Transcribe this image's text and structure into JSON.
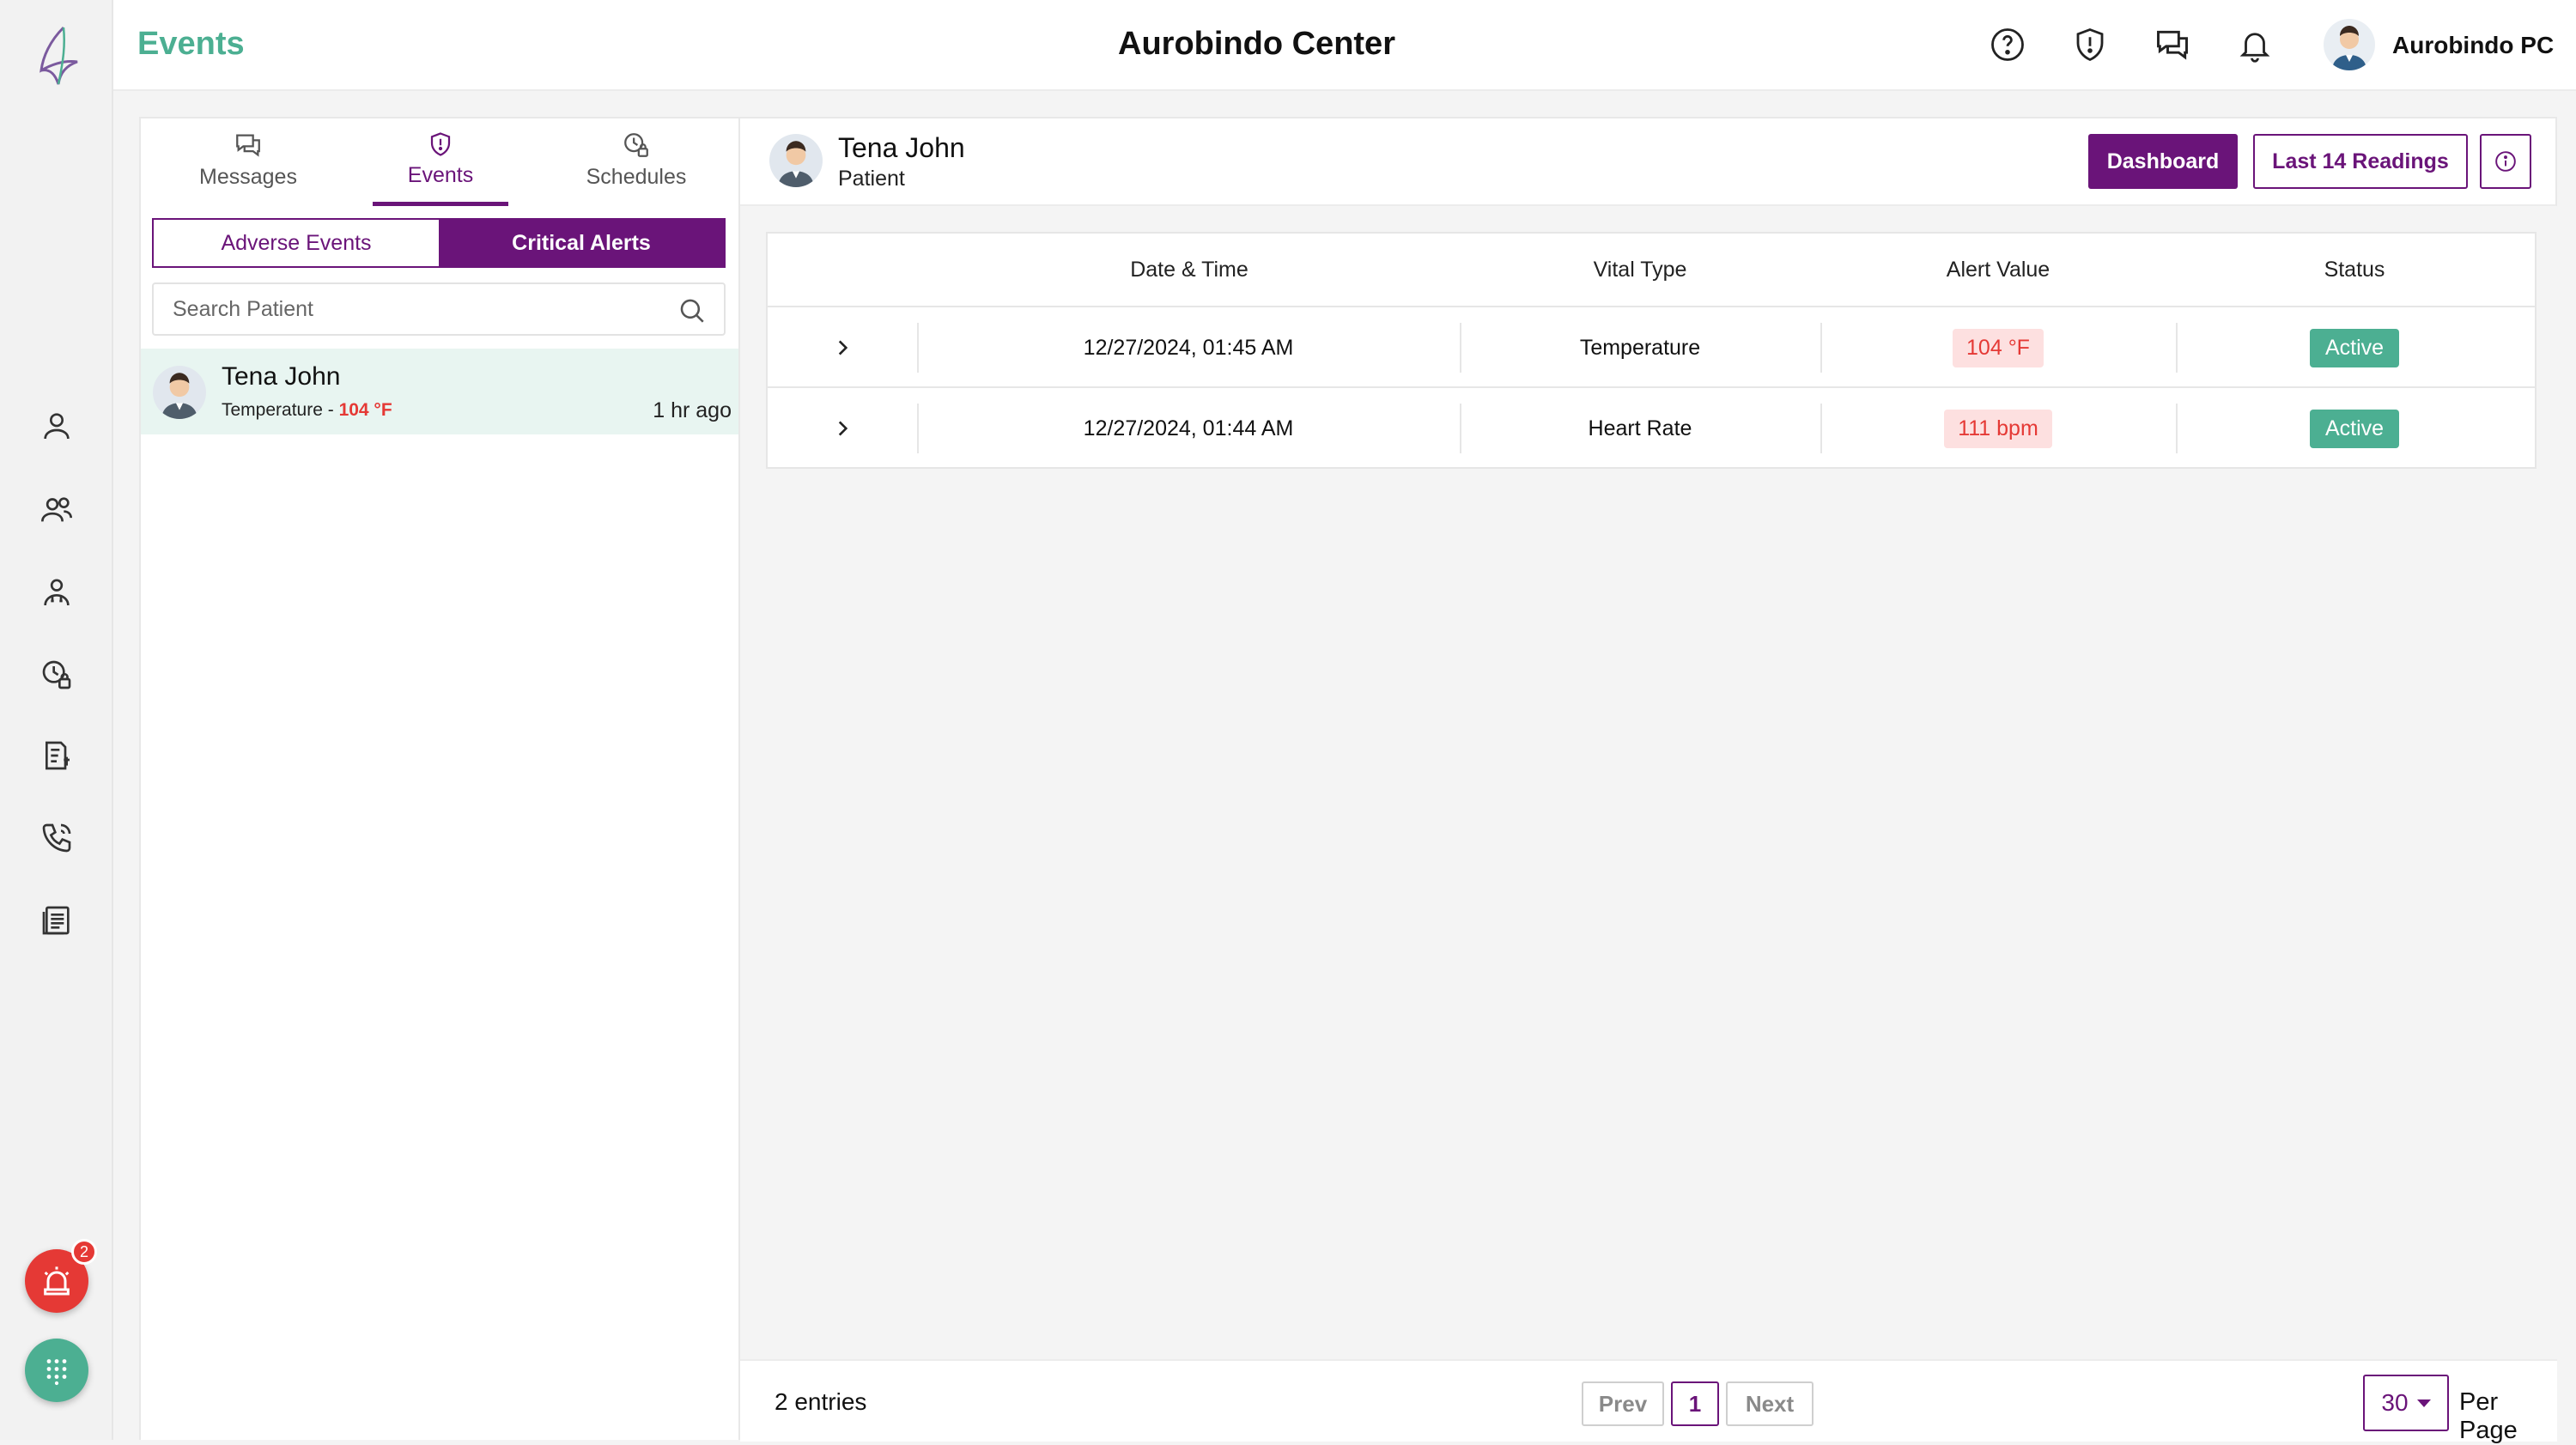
{
  "app": {
    "page_title": "Events",
    "center_title": "Aurobindo Center"
  },
  "header": {
    "icons": [
      "help-icon",
      "shield-alert-icon",
      "chat-icon",
      "bell-icon"
    ],
    "user_name": "Aurobindo PC"
  },
  "rail": {
    "items": [
      "user-icon",
      "users-icon",
      "doctor-icon",
      "schedule-icon",
      "billing-icon",
      "phone-icon",
      "reports-icon"
    ],
    "alarm_badge": "2"
  },
  "left_panel": {
    "tabs": [
      {
        "label": "Messages",
        "icon": "chat-icon"
      },
      {
        "label": "Events",
        "icon": "shield-alert-icon"
      },
      {
        "label": "Schedules",
        "icon": "schedule-icon"
      }
    ],
    "active_tab": "Events",
    "segments": {
      "adverse": "Adverse Events",
      "critical": "Critical Alerts"
    },
    "active_segment": "Critical Alerts",
    "search_placeholder": "Search Patient",
    "patients": [
      {
        "name": "Tena John",
        "vital": "Temperature",
        "separator": " - ",
        "value": "104 °F",
        "time": "1 hr ago"
      }
    ]
  },
  "main": {
    "patient": {
      "name": "Tena John",
      "role": "Patient"
    },
    "buttons": {
      "dashboard": "Dashboard",
      "last_readings": "Last 14 Readings"
    },
    "table": {
      "columns": [
        "Date & Time",
        "Vital Type",
        "Alert Value",
        "Status"
      ],
      "rows": [
        {
          "datetime": "12/27/2024, 01:45 AM",
          "vital": "Temperature",
          "value": "104 °F",
          "status": "Active"
        },
        {
          "datetime": "12/27/2024, 01:44 AM",
          "vital": "Heart Rate",
          "value": "111 bpm",
          "status": "Active"
        }
      ]
    },
    "footer": {
      "entries": "2 entries",
      "prev": "Prev",
      "page": "1",
      "next": "Next",
      "per_page_value": "30",
      "per_page_label": "Per Page"
    }
  },
  "colors": {
    "brand": "#6a1479",
    "accent": "#4caf92",
    "alert": "#e53935"
  }
}
